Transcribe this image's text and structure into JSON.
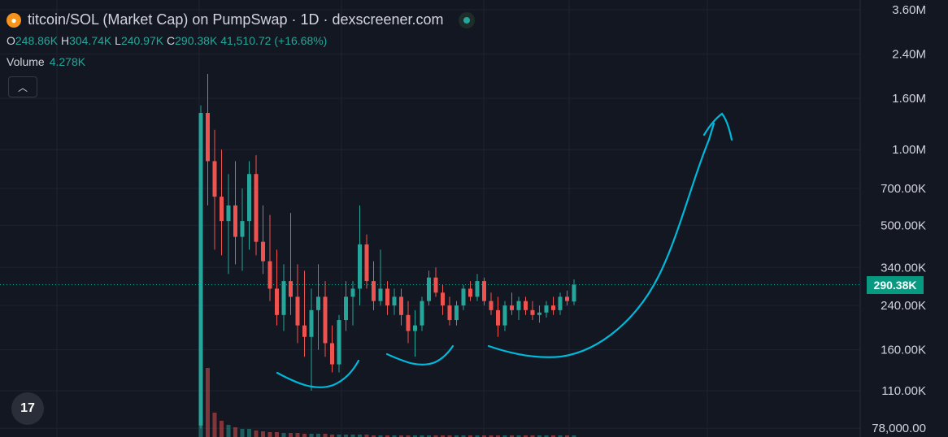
{
  "header": {
    "title": "titcoin/SOL (Market Cap) on PumpSwap · 1D · dexscreener.com",
    "logo_icon": "orange-coin-icon"
  },
  "ohlc": {
    "o_label": "O",
    "o": "248.86K",
    "h_label": "H",
    "h": "304.74K",
    "l_label": "L",
    "l": "240.97K",
    "c_label": "C",
    "c": "290.38K",
    "change": "41,510.72 (+16.68%)"
  },
  "volume": {
    "label": "Volume",
    "value": "4.278K"
  },
  "current_price_label": "290.38K",
  "tv_logo": "17",
  "colors": {
    "up": "#26a69a",
    "down": "#ef5350",
    "annotation": "#00b8d9",
    "bg": "#131722"
  },
  "chart_data": {
    "type": "candlestick",
    "title": "titcoin/SOL (Market Cap) on PumpSwap · 1D · dexscreener.com",
    "y_scale": "log",
    "ylim": [
      72000,
      3900000
    ],
    "yticks": [
      {
        "value": 3600000,
        "label": "3.60M"
      },
      {
        "value": 2400000,
        "label": "2.40M"
      },
      {
        "value": 1600000,
        "label": "1.60M"
      },
      {
        "value": 1000000,
        "label": "1.00M"
      },
      {
        "value": 700000,
        "label": "700.00K"
      },
      {
        "value": 500000,
        "label": "500.00K"
      },
      {
        "value": 340000,
        "label": "340.00K"
      },
      {
        "value": 240000,
        "label": "240.00K"
      },
      {
        "value": 160000,
        "label": "160.00K"
      },
      {
        "value": 110000,
        "label": "110.00K"
      },
      {
        "value": 78000,
        "label": "78,000.00"
      }
    ],
    "last_price": 290380,
    "candles": [
      [
        80000,
        1500000,
        78000,
        1400000
      ],
      [
        1400000,
        2000000,
        600000,
        900000
      ],
      [
        900000,
        1200000,
        400000,
        650000
      ],
      [
        650000,
        1000000,
        380000,
        520000
      ],
      [
        520000,
        800000,
        320000,
        600000
      ],
      [
        600000,
        900000,
        350000,
        450000
      ],
      [
        450000,
        700000,
        330000,
        520000
      ],
      [
        520000,
        900000,
        400000,
        800000
      ],
      [
        800000,
        950000,
        380000,
        430000
      ],
      [
        430000,
        600000,
        320000,
        360000
      ],
      [
        360000,
        550000,
        250000,
        280000
      ],
      [
        280000,
        400000,
        200000,
        220000
      ],
      [
        220000,
        350000,
        190000,
        300000
      ],
      [
        300000,
        560000,
        220000,
        260000
      ],
      [
        260000,
        350000,
        170000,
        200000
      ],
      [
        200000,
        330000,
        150000,
        180000
      ],
      [
        180000,
        280000,
        110000,
        230000
      ],
      [
        230000,
        350000,
        160000,
        260000
      ],
      [
        260000,
        300000,
        150000,
        170000
      ],
      [
        170000,
        200000,
        130000,
        140000
      ],
      [
        140000,
        220000,
        130000,
        210000
      ],
      [
        210000,
        300000,
        190000,
        260000
      ],
      [
        260000,
        300000,
        200000,
        280000
      ],
      [
        280000,
        600000,
        240000,
        420000
      ],
      [
        420000,
        460000,
        280000,
        300000
      ],
      [
        300000,
        360000,
        230000,
        250000
      ],
      [
        250000,
        400000,
        240000,
        280000
      ],
      [
        280000,
        300000,
        220000,
        240000
      ],
      [
        240000,
        280000,
        220000,
        260000
      ],
      [
        260000,
        280000,
        200000,
        220000
      ],
      [
        220000,
        250000,
        170000,
        190000
      ],
      [
        190000,
        230000,
        150000,
        200000
      ],
      [
        200000,
        260000,
        190000,
        250000
      ],
      [
        250000,
        330000,
        240000,
        310000
      ],
      [
        310000,
        340000,
        260000,
        270000
      ],
      [
        270000,
        290000,
        220000,
        240000
      ],
      [
        240000,
        260000,
        200000,
        210000
      ],
      [
        210000,
        250000,
        200000,
        240000
      ],
      [
        240000,
        290000,
        230000,
        280000
      ],
      [
        280000,
        300000,
        250000,
        260000
      ],
      [
        260000,
        320000,
        250000,
        300000
      ],
      [
        300000,
        310000,
        240000,
        250000
      ],
      [
        250000,
        270000,
        220000,
        230000
      ],
      [
        230000,
        260000,
        180000,
        200000
      ],
      [
        200000,
        250000,
        190000,
        240000
      ],
      [
        240000,
        270000,
        220000,
        230000
      ],
      [
        230000,
        260000,
        210000,
        250000
      ],
      [
        250000,
        260000,
        220000,
        230000
      ],
      [
        230000,
        250000,
        210000,
        220000
      ],
      [
        220000,
        240000,
        205000,
        225000
      ],
      [
        225000,
        250000,
        215000,
        240000
      ],
      [
        240000,
        260000,
        220000,
        230000
      ],
      [
        230000,
        270000,
        220000,
        260000
      ],
      [
        260000,
        275000,
        240000,
        250000
      ],
      [
        248860,
        304740,
        240970,
        290380
      ]
    ],
    "volume_bars_relative": [
      1.0,
      0.85,
      0.3,
      0.2,
      0.15,
      0.12,
      0.1,
      0.1,
      0.08,
      0.07,
      0.06,
      0.06,
      0.05,
      0.05,
      0.05,
      0.04,
      0.04,
      0.04,
      0.04,
      0.03,
      0.03,
      0.03,
      0.03,
      0.03,
      0.03,
      0.02,
      0.02,
      0.02,
      0.02,
      0.02,
      0.02,
      0.02,
      0.02,
      0.02,
      0.02,
      0.02,
      0.02,
      0.02,
      0.02,
      0.02,
      0.02,
      0.02,
      0.02,
      0.02,
      0.02,
      0.02,
      0.02,
      0.02,
      0.02,
      0.02,
      0.02,
      0.02,
      0.02,
      0.02,
      0.02
    ],
    "annotations": [
      {
        "kind": "smile-curve",
        "label": ""
      },
      {
        "kind": "smile-curve",
        "label": ""
      },
      {
        "kind": "smile-curve-with-arrow-up",
        "label": ""
      }
    ]
  }
}
